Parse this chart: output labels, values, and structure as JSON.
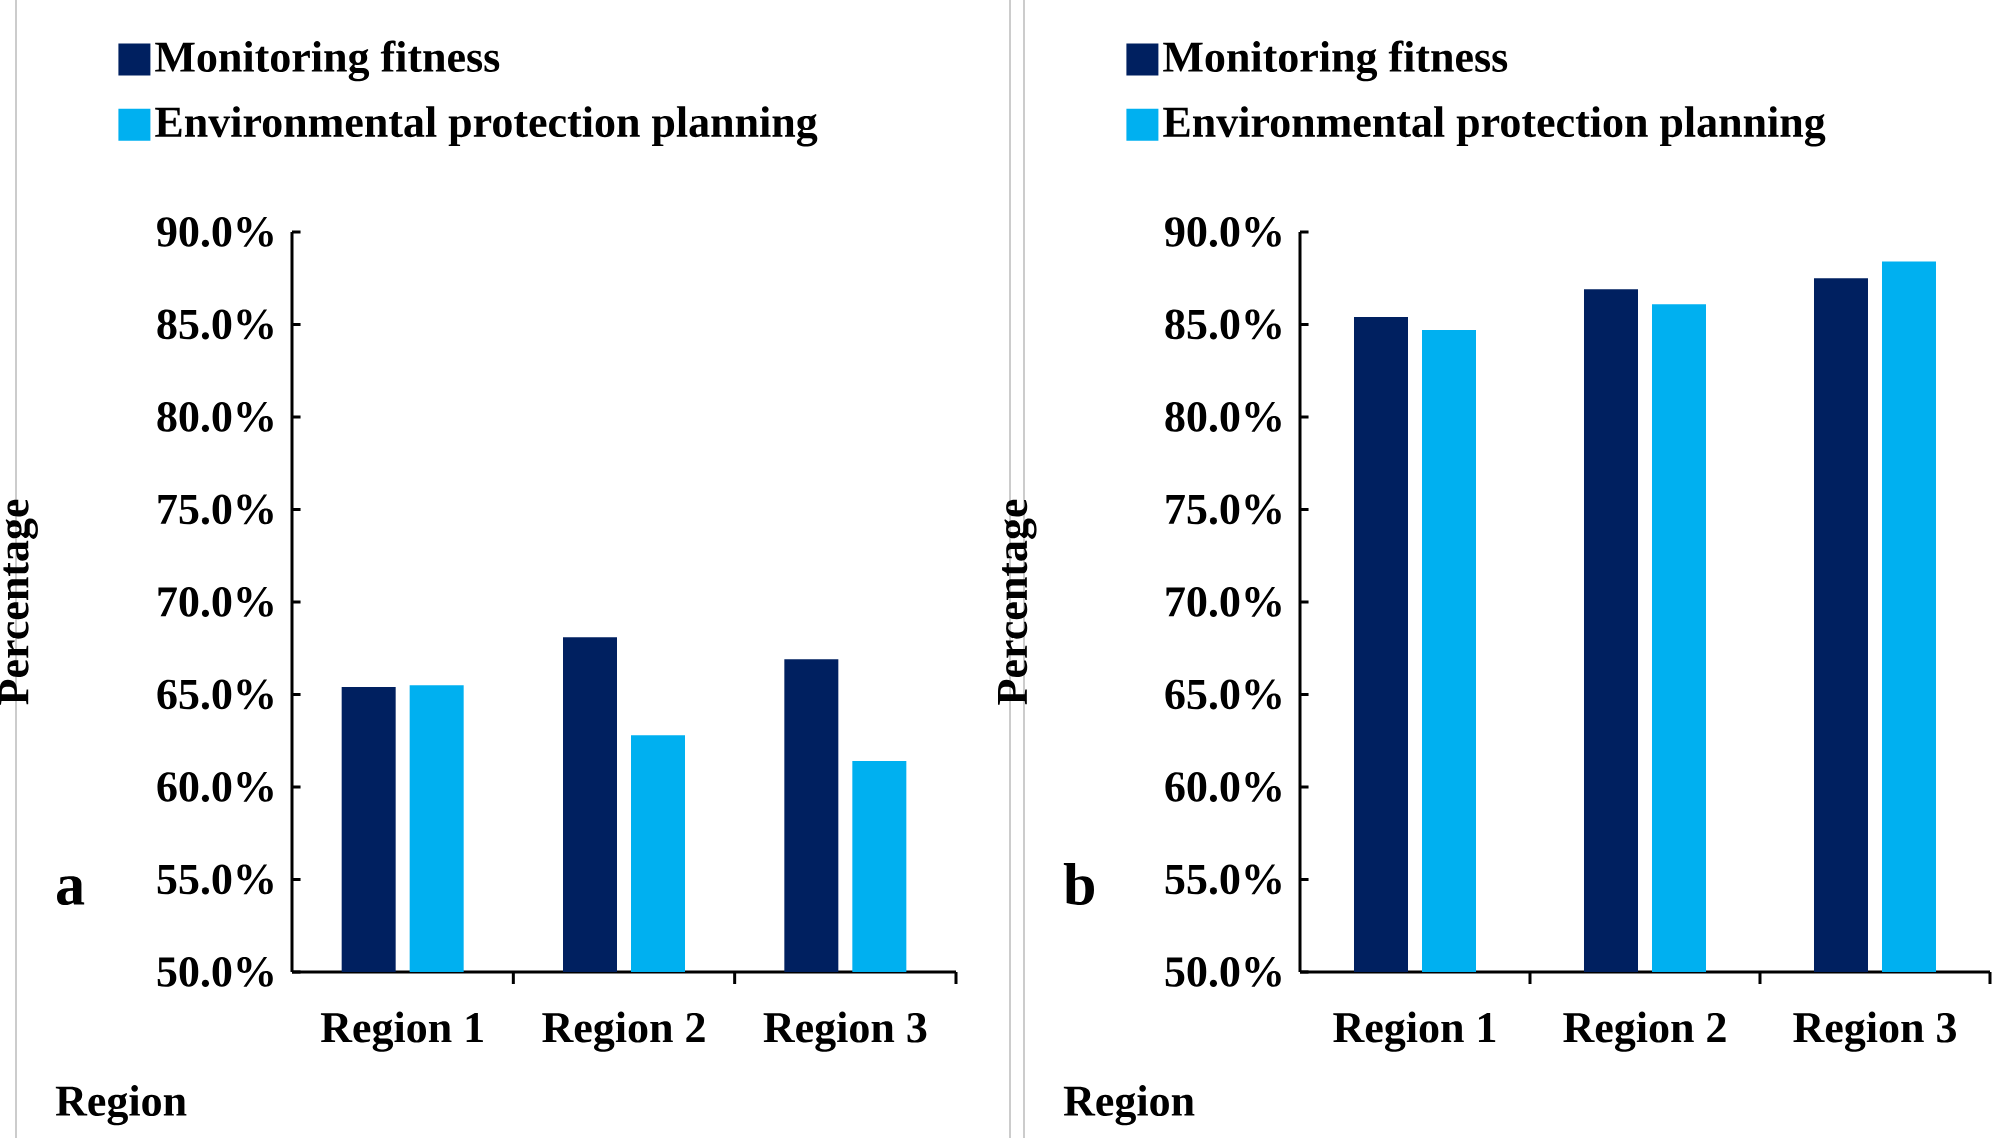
{
  "chart_data": [
    {
      "type": "bar",
      "annotations": [
        "a"
      ],
      "xlabel": "Region",
      "ylabel": "Percentage",
      "categories": [
        "Region 1",
        "Region 2",
        "Region 3"
      ],
      "series": [
        {
          "name": "Monitoring fitness",
          "color": "#002060",
          "values": [
            65.4,
            68.1,
            66.9
          ]
        },
        {
          "name": "Environmental protection planning",
          "color": "#00b0f0",
          "values": [
            65.5,
            62.8,
            61.4
          ]
        }
      ],
      "ylim": [
        50,
        90
      ],
      "yticks": [
        {
          "value": 50,
          "label": "50.0%"
        },
        {
          "value": 55,
          "label": "55.0%"
        },
        {
          "value": 60,
          "label": "60.0%"
        },
        {
          "value": 65,
          "label": "65.0%"
        },
        {
          "value": 70,
          "label": "70.0%"
        },
        {
          "value": 75,
          "label": "75.0%"
        },
        {
          "value": 80,
          "label": "80.0%"
        },
        {
          "value": 85,
          "label": "85.0%"
        },
        {
          "value": 90,
          "label": "90.0%"
        }
      ],
      "legend": "top",
      "grid": false
    },
    {
      "type": "bar",
      "annotations": [
        "b"
      ],
      "xlabel": "Region",
      "ylabel": "Percentage",
      "categories": [
        "Region 1",
        "Region 2",
        "Region 3"
      ],
      "series": [
        {
          "name": "Monitoring fitness",
          "color": "#002060",
          "values": [
            85.4,
            86.9,
            87.5
          ]
        },
        {
          "name": "Environmental protection planning",
          "color": "#00b0f0",
          "values": [
            84.7,
            86.1,
            88.4
          ]
        }
      ],
      "ylim": [
        50,
        90
      ],
      "yticks": [
        {
          "value": 50,
          "label": "50.0%"
        },
        {
          "value": 55,
          "label": "55.0%"
        },
        {
          "value": 60,
          "label": "60.0%"
        },
        {
          "value": 65,
          "label": "65.0%"
        },
        {
          "value": 70,
          "label": "70.0%"
        },
        {
          "value": 75,
          "label": "75.0%"
        },
        {
          "value": 80,
          "label": "80.0%"
        },
        {
          "value": 85,
          "label": "85.0%"
        },
        {
          "value": 90,
          "label": "90.0%"
        }
      ],
      "legend": "top",
      "grid": false
    }
  ]
}
